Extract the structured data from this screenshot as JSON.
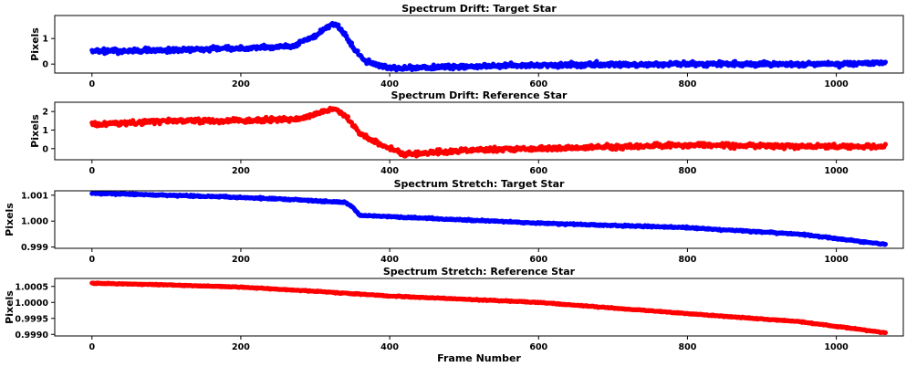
{
  "chart_data": [
    {
      "type": "scatter",
      "title": "Spectrum Drift: Target Star",
      "ylabel": "Pixels",
      "xlabel": "",
      "color": "#0000ff",
      "xlim": [
        -50,
        1090
      ],
      "ylim": [
        -0.35,
        1.9
      ],
      "xticks": [
        0,
        200,
        400,
        600,
        800,
        1000
      ],
      "yticks": [
        0,
        1
      ],
      "ytick_labels": [
        "0",
        "1"
      ],
      "n_frames": 1067,
      "noise": 0.06,
      "trend": [
        [
          0,
          0.5
        ],
        [
          100,
          0.55
        ],
        [
          200,
          0.62
        ],
        [
          270,
          0.7
        ],
        [
          300,
          1.1
        ],
        [
          320,
          1.55
        ],
        [
          330,
          1.5
        ],
        [
          345,
          0.9
        ],
        [
          365,
          0.15
        ],
        [
          400,
          -0.15
        ],
        [
          430,
          -0.15
        ],
        [
          500,
          -0.1
        ],
        [
          600,
          -0.05
        ],
        [
          800,
          0.0
        ],
        [
          1000,
          0.0
        ],
        [
          1066,
          0.05
        ]
      ]
    },
    {
      "type": "scatter",
      "title": "Spectrum Drift: Reference Star",
      "ylabel": "Pixels",
      "xlabel": "",
      "color": "#ff0000",
      "xlim": [
        -50,
        1090
      ],
      "ylim": [
        -0.6,
        2.5
      ],
      "xticks": [
        0,
        200,
        400,
        600,
        800,
        1000
      ],
      "yticks": [
        0,
        1,
        2
      ],
      "ytick_labels": [
        "0",
        "1",
        "2"
      ],
      "n_frames": 1067,
      "noise": 0.08,
      "trend": [
        [
          0,
          1.3
        ],
        [
          100,
          1.5
        ],
        [
          200,
          1.5
        ],
        [
          280,
          1.6
        ],
        [
          310,
          2.0
        ],
        [
          325,
          2.15
        ],
        [
          340,
          1.8
        ],
        [
          360,
          0.8
        ],
        [
          400,
          0.0
        ],
        [
          420,
          -0.3
        ],
        [
          500,
          -0.1
        ],
        [
          600,
          0.0
        ],
        [
          800,
          0.2
        ],
        [
          900,
          0.15
        ],
        [
          1066,
          0.1
        ]
      ]
    },
    {
      "type": "scatter",
      "title": "Spectrum Stretch: Target Star",
      "ylabel": "Pixels",
      "xlabel": "",
      "color": "#0000ff",
      "xlim": [
        -50,
        1090
      ],
      "ylim": [
        0.99895,
        1.00117
      ],
      "xticks": [
        0,
        200,
        400,
        600,
        800,
        1000
      ],
      "yticks": [
        0.999,
        1.0,
        1.001
      ],
      "ytick_labels": [
        "0.999",
        "1.000",
        "1.001"
      ],
      "n_frames": 1067,
      "noise": 2e-05,
      "trend": [
        [
          0,
          1.00108
        ],
        [
          100,
          1.001
        ],
        [
          200,
          1.00092
        ],
        [
          270,
          1.00083
        ],
        [
          340,
          1.00072
        ],
        [
          350,
          1.00055
        ],
        [
          360,
          1.00022
        ],
        [
          500,
          1.00005
        ],
        [
          600,
          0.99992
        ],
        [
          800,
          0.99975
        ],
        [
          950,
          0.9995
        ],
        [
          1066,
          0.9991
        ]
      ]
    },
    {
      "type": "scatter",
      "title": "Spectrum Stretch: Reference Star",
      "ylabel": "Pixels",
      "xlabel": "Frame Number",
      "color": "#ff0000",
      "xlim": [
        -50,
        1090
      ],
      "ylim": [
        0.99895,
        1.00075
      ],
      "xticks": [
        0,
        200,
        400,
        600,
        800,
        1000
      ],
      "yticks": [
        0.999,
        0.9995,
        1.0,
        1.0005
      ],
      "ytick_labels": [
        "0.9990",
        "0.9995",
        "1.0000",
        "1.0005"
      ],
      "n_frames": 1067,
      "noise": 1e-05,
      "trend": [
        [
          0,
          1.0006
        ],
        [
          100,
          1.00055
        ],
        [
          200,
          1.00048
        ],
        [
          300,
          1.00035
        ],
        [
          400,
          1.0002
        ],
        [
          600,
          1.0
        ],
        [
          800,
          0.99965
        ],
        [
          950,
          0.9994
        ],
        [
          1066,
          0.99905
        ]
      ]
    }
  ]
}
